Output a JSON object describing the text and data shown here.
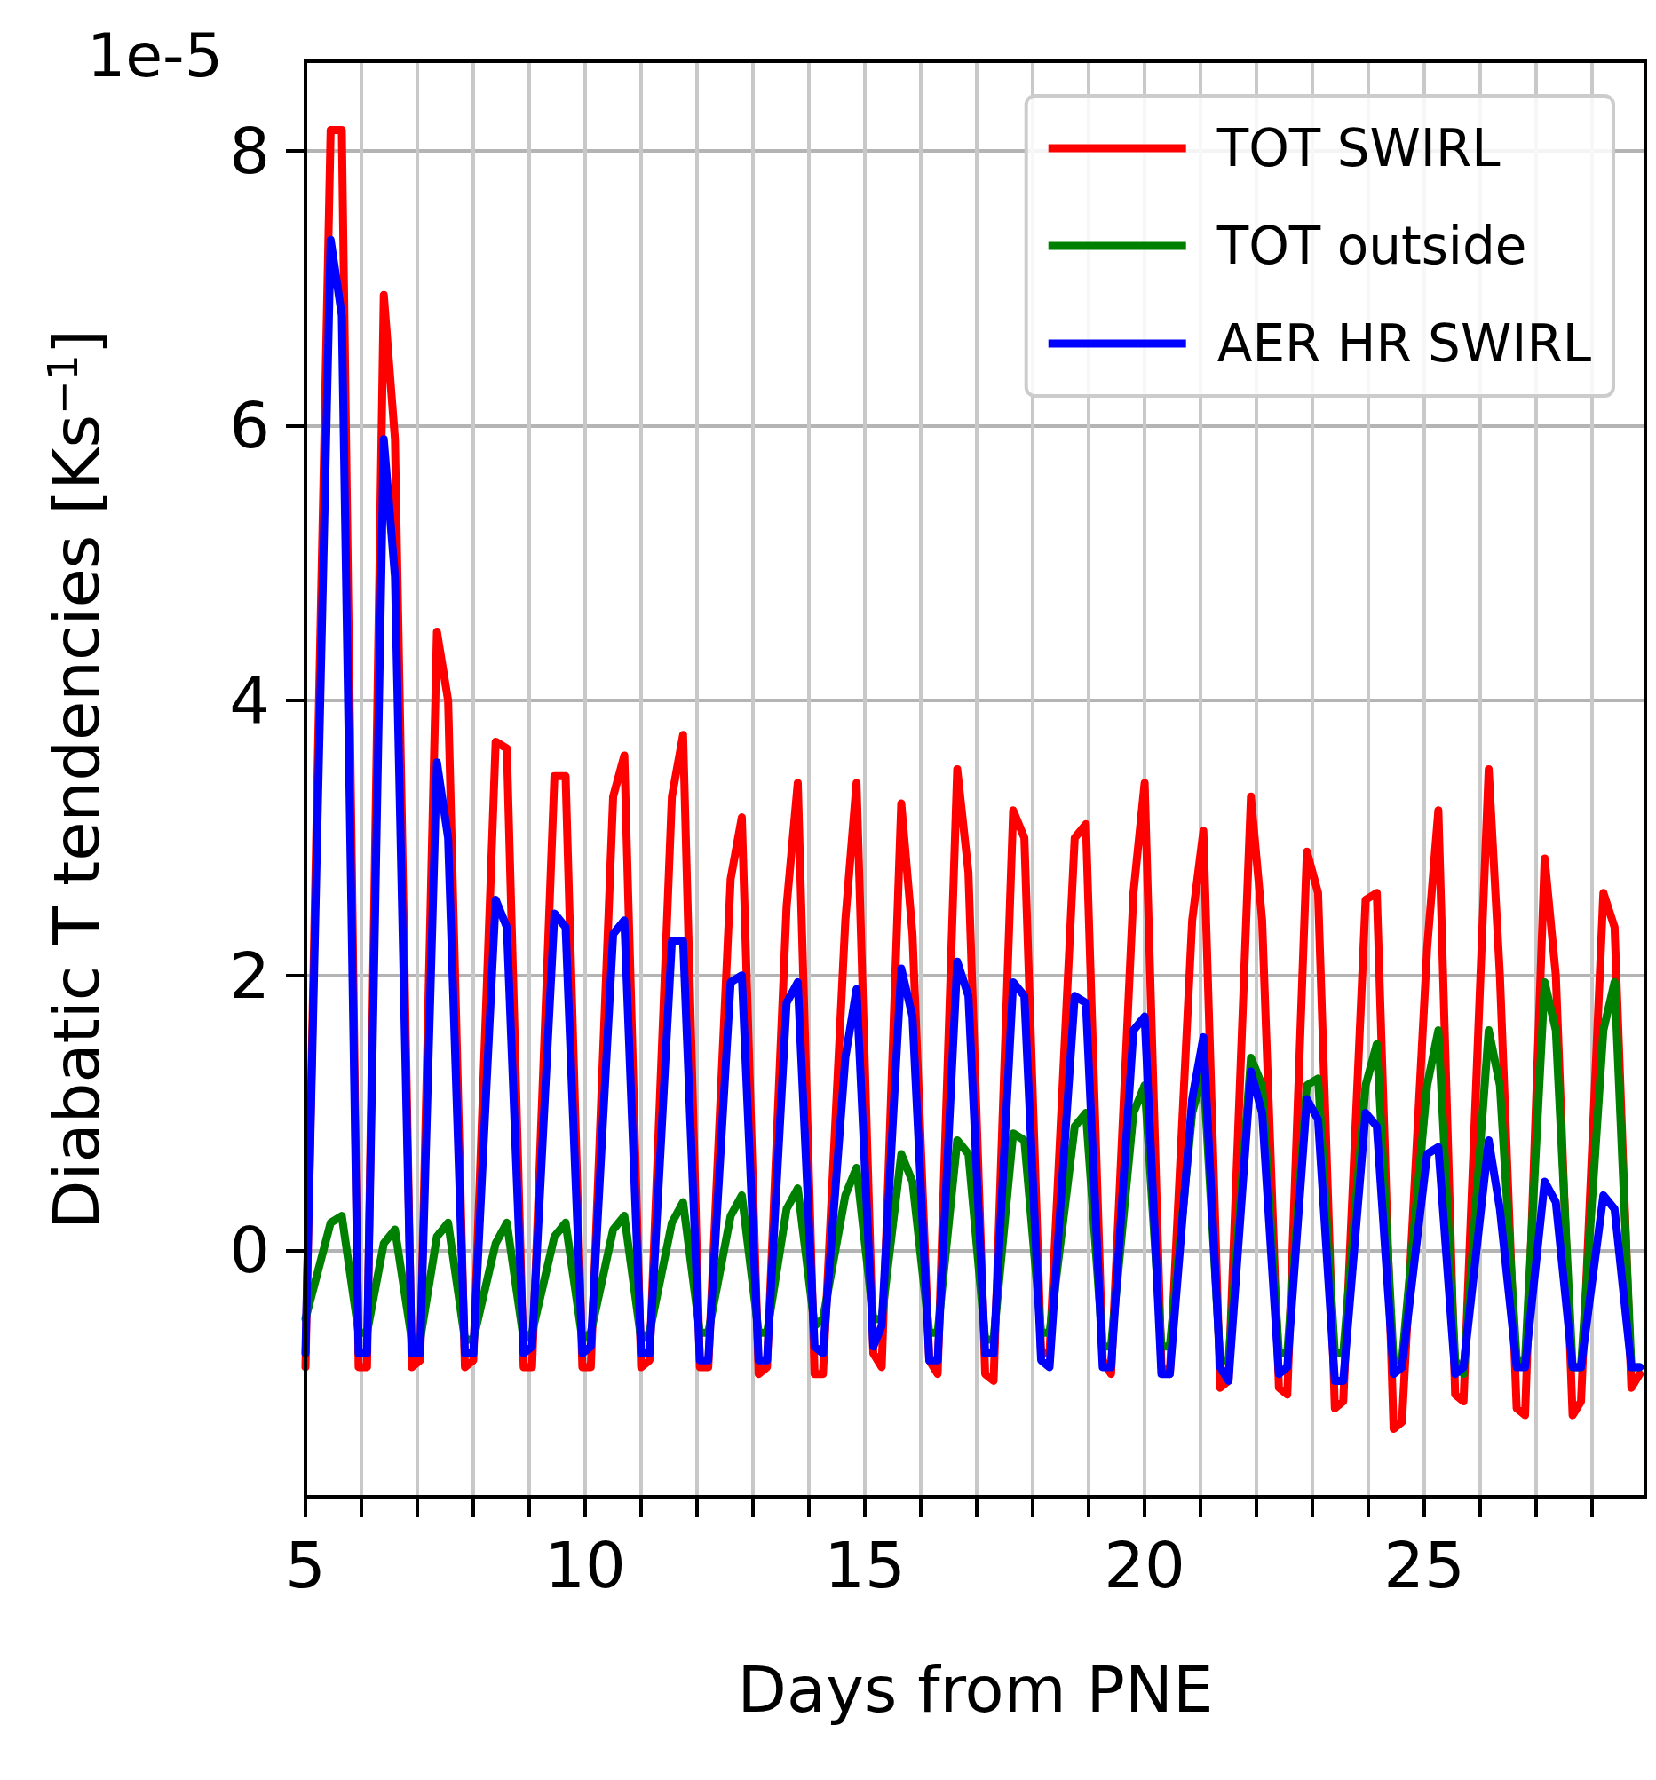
{
  "chart_data": {
    "type": "line",
    "xlabel": "Days from PNE",
    "ylabel": "Diabatic T tendencies [Ks$^{−1}$]",
    "annotations": [
      "1e-5"
    ],
    "xlim": [
      5,
      28.95
    ],
    "ylim": [
      -1.8,
      8.65
    ],
    "xticks": [
      5,
      {
        "value": 6,
        "label": null
      },
      {
        "value": 7,
        "label": null
      },
      {
        "value": 8,
        "label": null
      },
      {
        "value": 9,
        "label": null
      },
      10,
      {
        "value": 11,
        "label": null
      },
      {
        "value": 12,
        "label": null
      },
      {
        "value": 13,
        "label": null
      },
      {
        "value": 14,
        "label": null
      },
      15,
      {
        "value": 16,
        "label": null
      },
      {
        "value": 17,
        "label": null
      },
      {
        "value": 18,
        "label": null
      },
      {
        "value": 19,
        "label": null
      },
      20,
      {
        "value": 21,
        "label": null
      },
      {
        "value": 22,
        "label": null
      },
      {
        "value": 23,
        "label": null
      },
      {
        "value": 24,
        "label": null
      },
      25,
      {
        "value": 26,
        "label": null
      },
      {
        "value": 27,
        "label": null
      },
      {
        "value": 28,
        "label": null
      }
    ],
    "yticks": [
      0,
      2,
      4,
      6,
      8
    ],
    "grid": true,
    "legend": "top right",
    "x": [
      5.0,
      5.45,
      5.65,
      5.95,
      6.1,
      6.4,
      6.6,
      6.9,
      7.05,
      7.35,
      7.55,
      7.85,
      8.0,
      8.4,
      8.6,
      8.9,
      9.05,
      9.45,
      9.65,
      9.95,
      10.1,
      10.5,
      10.7,
      11.0,
      11.15,
      11.55,
      11.75,
      12.05,
      12.2,
      12.6,
      12.8,
      13.1,
      13.25,
      13.6,
      13.8,
      14.1,
      14.25,
      14.65,
      14.85,
      15.15,
      15.3,
      15.65,
      15.85,
      16.15,
      16.3,
      16.65,
      16.85,
      17.15,
      17.3,
      17.65,
      17.85,
      18.15,
      18.3,
      18.75,
      18.95,
      19.25,
      19.4,
      19.8,
      20.0,
      20.3,
      20.45,
      20.85,
      21.05,
      21.35,
      21.5,
      21.9,
      22.1,
      22.4,
      22.55,
      22.9,
      23.1,
      23.4,
      23.55,
      23.95,
      24.15,
      24.45,
      24.6,
      25.05,
      25.25,
      25.55,
      25.7,
      26.15,
      26.35,
      26.65,
      26.8,
      27.15,
      27.35,
      27.65,
      27.8,
      28.2,
      28.4,
      28.7,
      28.85
    ],
    "series": [
      {
        "name": "TOT SWIRL",
        "color": "#ff0000",
        "values": [
          -0.85,
          8.15,
          8.15,
          -0.85,
          -0.85,
          6.95,
          5.9,
          -0.85,
          -0.8,
          4.5,
          4.0,
          -0.85,
          -0.8,
          3.7,
          3.65,
          -0.85,
          -0.85,
          3.45,
          3.45,
          -0.85,
          -0.85,
          3.3,
          3.6,
          -0.85,
          -0.8,
          3.3,
          3.75,
          -0.85,
          -0.85,
          2.7,
          3.15,
          -0.9,
          -0.85,
          2.5,
          3.4,
          -0.9,
          -0.9,
          2.4,
          3.4,
          -0.75,
          -0.85,
          3.25,
          2.3,
          -0.8,
          -0.9,
          3.5,
          2.75,
          -0.9,
          -0.95,
          3.2,
          3.0,
          -0.75,
          -0.75,
          3.0,
          3.1,
          -0.8,
          -0.9,
          2.6,
          3.4,
          -0.85,
          -0.9,
          2.4,
          3.05,
          -1.0,
          -0.95,
          3.3,
          2.4,
          -1.0,
          -1.05,
          2.9,
          2.6,
          -1.15,
          -1.1,
          2.55,
          2.6,
          -1.3,
          -1.25,
          2.2,
          3.2,
          -1.05,
          -1.1,
          3.5,
          2.0,
          -1.15,
          -1.2,
          2.85,
          2.0,
          -1.2,
          -1.1,
          2.6,
          2.35,
          -1.0,
          -0.9
        ]
      },
      {
        "name": "TOT outside",
        "color": "#008000",
        "values": [
          -0.5,
          0.2,
          0.25,
          -0.6,
          -0.6,
          0.05,
          0.15,
          -0.65,
          -0.65,
          0.1,
          0.2,
          -0.65,
          -0.65,
          0.05,
          0.2,
          -0.65,
          -0.6,
          0.1,
          0.2,
          -0.65,
          -0.6,
          0.15,
          0.25,
          -0.65,
          -0.6,
          0.2,
          0.35,
          -0.6,
          -0.6,
          0.25,
          0.4,
          -0.6,
          -0.6,
          0.3,
          0.45,
          -0.55,
          -0.5,
          0.4,
          0.6,
          -0.5,
          -0.5,
          0.7,
          0.5,
          -0.6,
          -0.6,
          0.8,
          0.7,
          -0.65,
          -0.65,
          0.85,
          0.8,
          -0.6,
          -0.6,
          0.9,
          1.0,
          -0.7,
          -0.7,
          1.0,
          1.2,
          -0.7,
          -0.7,
          1.0,
          1.3,
          -0.8,
          -0.8,
          1.4,
          1.2,
          -0.75,
          -0.75,
          1.2,
          1.25,
          -0.75,
          -0.75,
          1.2,
          1.5,
          -0.8,
          -0.8,
          1.2,
          1.6,
          -0.8,
          -0.9,
          1.6,
          1.2,
          -0.8,
          -0.8,
          1.95,
          1.6,
          -0.85,
          -0.85,
          1.6,
          1.95,
          -0.85,
          -0.85
        ]
      },
      {
        "name": "AER HR SWIRL",
        "color": "#0000ff",
        "values": [
          -0.75,
          7.35,
          6.8,
          -0.75,
          -0.75,
          5.9,
          4.9,
          -0.75,
          -0.75,
          3.55,
          3.0,
          -0.75,
          -0.75,
          2.55,
          2.35,
          -0.75,
          -0.7,
          2.45,
          2.35,
          -0.75,
          -0.7,
          2.3,
          2.4,
          -0.75,
          -0.75,
          2.25,
          2.25,
          -0.8,
          -0.8,
          1.95,
          2.0,
          -0.8,
          -0.8,
          1.8,
          1.95,
          -0.7,
          -0.75,
          1.4,
          1.9,
          -0.7,
          -0.55,
          2.05,
          1.7,
          -0.8,
          -0.8,
          2.1,
          1.85,
          -0.75,
          -0.75,
          1.95,
          1.85,
          -0.8,
          -0.85,
          1.85,
          1.8,
          -0.85,
          -0.85,
          1.6,
          1.7,
          -0.9,
          -0.9,
          1.1,
          1.55,
          -0.85,
          -0.95,
          1.3,
          1.0,
          -0.9,
          -0.85,
          1.1,
          0.95,
          -0.95,
          -0.95,
          1.0,
          0.9,
          -0.9,
          -0.85,
          0.7,
          0.75,
          -0.9,
          -0.85,
          0.8,
          0.3,
          -0.85,
          -0.85,
          0.5,
          0.35,
          -0.85,
          -0.85,
          0.4,
          0.3,
          -0.85,
          -0.85
        ]
      }
    ]
  }
}
